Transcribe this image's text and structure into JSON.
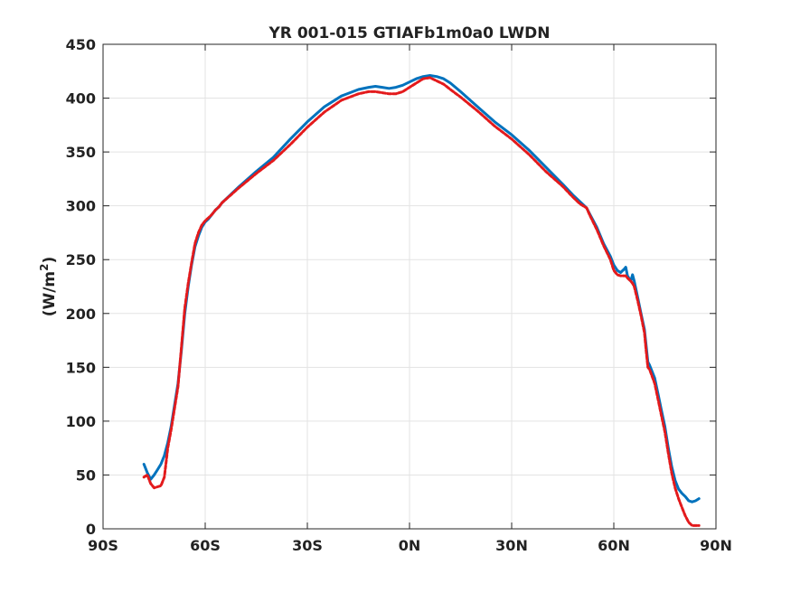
{
  "chart_data": {
    "type": "line",
    "title": "YR 001-015 GTIAFb1m0a0 LWDN",
    "xlabel": "",
    "ylabel": "(W/m",
    "ylabel_sup": "2",
    "ylabel_close": ")",
    "xlim": [
      -90,
      90
    ],
    "ylim": [
      0,
      450
    ],
    "xticks": [
      -90,
      -60,
      -30,
      0,
      30,
      60,
      90
    ],
    "xtick_labels": [
      "90S",
      "60S",
      "30S",
      "0N",
      "30N",
      "60N",
      "90N"
    ],
    "yticks": [
      0,
      50,
      100,
      150,
      200,
      250,
      300,
      350,
      400,
      450
    ],
    "ytick_labels": [
      "0",
      "50",
      "100",
      "150",
      "200",
      "250",
      "300",
      "350",
      "400",
      "450"
    ],
    "grid": true,
    "series": [
      {
        "color": "#0072BD",
        "style": "solid",
        "x": [
          -78,
          -77,
          -76,
          -75,
          -74,
          -73,
          -72,
          -71,
          -70,
          -69,
          -68,
          -67,
          -66,
          -65,
          -64,
          -63,
          -62,
          -61,
          -60,
          -59,
          -58,
          -57,
          -56,
          -55,
          -50,
          -45,
          -40,
          -35,
          -30,
          -25,
          -20,
          -15,
          -12,
          -10,
          -8,
          -6,
          -4,
          -2,
          0,
          2,
          4,
          6,
          8,
          10,
          12,
          15,
          20,
          25,
          30,
          35,
          40,
          45,
          48,
          50,
          52,
          53,
          55,
          57,
          59,
          60,
          61,
          62,
          63,
          63.5,
          64,
          65,
          65.5,
          66,
          67,
          68,
          69,
          69.5,
          70,
          70.5,
          72,
          73,
          74,
          75,
          76,
          77,
          78,
          79,
          80,
          81,
          82,
          83,
          84,
          85
        ],
        "y": [
          60,
          52,
          46,
          50,
          55,
          60,
          68,
          80,
          95,
          115,
          135,
          165,
          200,
          225,
          245,
          262,
          272,
          280,
          285,
          288,
          292,
          296,
          299,
          303,
          318,
          332,
          345,
          362,
          378,
          392,
          402,
          408,
          410,
          411,
          410,
          409,
          410,
          412,
          415,
          418,
          420,
          421,
          420,
          418,
          414,
          406,
          392,
          378,
          366,
          352,
          336,
          320,
          310,
          304,
          298,
          292,
          280,
          265,
          253,
          245,
          240,
          238,
          241,
          243,
          235,
          230,
          236,
          230,
          215,
          200,
          185,
          170,
          155,
          152,
          140,
          125,
          110,
          95,
          75,
          58,
          45,
          37,
          33,
          30,
          26,
          25,
          26,
          28
        ]
      },
      {
        "color": "#E31A1C",
        "style": "dashed",
        "x": [
          -78,
          -77,
          -76,
          -75,
          -74,
          -73,
          -72,
          -71,
          -70,
          -69,
          -68,
          -67,
          -66,
          -65,
          -64,
          -63,
          -62,
          -61,
          -60,
          -59,
          -58,
          -57,
          -56,
          -55,
          -50,
          -45,
          -40,
          -35,
          -30,
          -25,
          -20,
          -15,
          -12,
          -10,
          -8,
          -6,
          -4,
          -2,
          0,
          2,
          4,
          6,
          8,
          10,
          12,
          15,
          20,
          25,
          30,
          35,
          40,
          45,
          48,
          50,
          52,
          53,
          55,
          57,
          59,
          60,
          61,
          62,
          63,
          63.5,
          64,
          65,
          65.5,
          66,
          67,
          68,
          69,
          69.5,
          70,
          70.5,
          72,
          73,
          74,
          75,
          76,
          77,
          78,
          79,
          80,
          81,
          82,
          83,
          84,
          85
        ],
        "y": [
          48,
          50,
          42,
          38,
          39,
          40,
          48,
          75,
          92,
          112,
          132,
          168,
          205,
          228,
          247,
          265,
          275,
          282,
          286,
          289,
          292,
          296,
          299,
          303,
          317,
          330,
          342,
          357,
          373,
          387,
          398,
          404,
          406,
          406,
          405,
          404,
          404,
          406,
          410,
          414,
          418,
          419,
          416,
          413,
          408,
          401,
          388,
          374,
          362,
          348,
          332,
          318,
          308,
          302,
          298,
          291,
          278,
          263,
          250,
          240,
          236,
          235,
          235,
          235,
          233,
          230,
          228,
          225,
          212,
          198,
          182,
          165,
          150,
          148,
          135,
          120,
          105,
          90,
          70,
          52,
          38,
          28,
          20,
          12,
          6,
          3,
          3,
          3
        ]
      }
    ]
  }
}
